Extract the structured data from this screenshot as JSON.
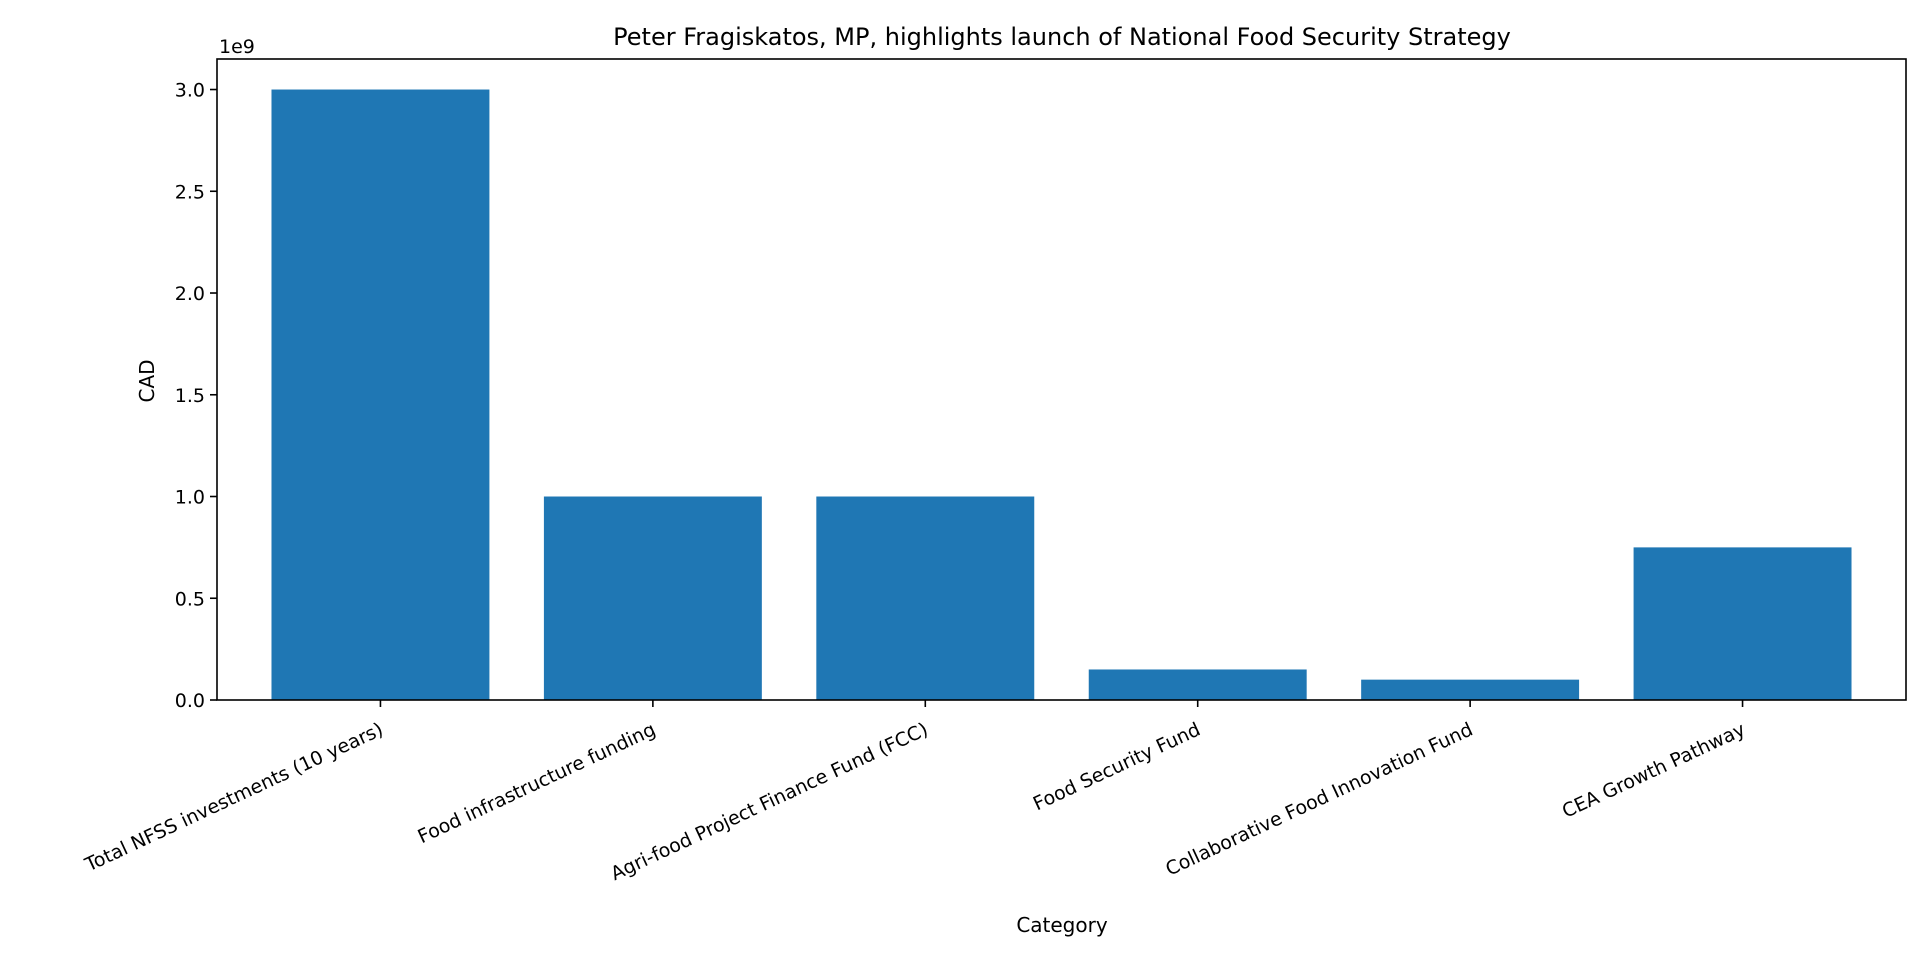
{
  "chart_data": {
    "type": "bar",
    "title": "Peter Fragiskatos, MP, highlights launch of National Food Security Strategy",
    "xlabel": "Category",
    "ylabel": "CAD",
    "y_offset_label": "1e9",
    "categories": [
      "Total NFSS investments (10 years)",
      "Food infrastructure funding",
      "Agri-food Project Finance Fund (FCC)",
      "Food Security Fund",
      "Collaborative Food Innovation Fund",
      "CEA Growth Pathway"
    ],
    "values": [
      3000000000,
      1000000000,
      1000000000,
      150000000,
      100000000,
      750000000
    ],
    "ylim": [
      0,
      3150000000
    ],
    "yticks": [
      0,
      500000000,
      1000000000,
      1500000000,
      2000000000,
      2500000000,
      3000000000
    ],
    "ytick_labels": [
      "0.0",
      "0.5",
      "1.0",
      "1.5",
      "2.0",
      "2.5",
      "3.0"
    ],
    "bar_color": "#1f77b4",
    "grid": false,
    "legend": "none"
  }
}
